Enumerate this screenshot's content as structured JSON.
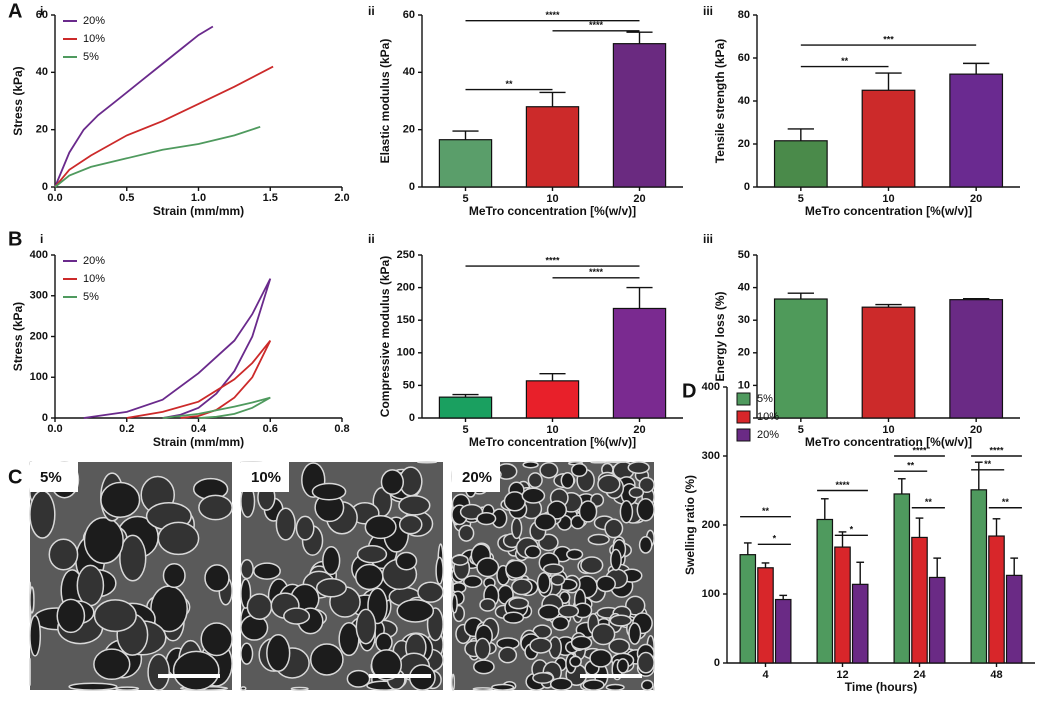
{
  "chart_data": [
    {
      "type": "line",
      "panel_letter": "A",
      "panel_label": "i",
      "xlabel": "Strain (mm/mm)",
      "ylabel": "Stress (kPa)",
      "xlim": [
        0,
        2
      ],
      "xticks": [
        {
          "value": 0,
          "label": "0.0"
        },
        0.5,
        {
          "value": 1,
          "label": "1.0"
        },
        1.5,
        {
          "value": 2,
          "label": "2.0"
        }
      ],
      "ylim": [
        0,
        60
      ],
      "yticks": [
        0,
        20,
        40,
        60
      ],
      "legend": "upper left",
      "series": [
        {
          "name": "20%",
          "color": "#6a2a8c",
          "x": [
            0,
            0.1,
            0.2,
            0.3,
            0.4,
            0.5,
            0.6,
            0.7,
            0.8,
            0.9,
            1.0,
            1.1
          ],
          "values": [
            0,
            12,
            20,
            25,
            29,
            33,
            37,
            41,
            45,
            49,
            53,
            56
          ]
        },
        {
          "name": "10%",
          "color": "#cc2a2a",
          "x": [
            0,
            0.1,
            0.25,
            0.5,
            0.75,
            1.0,
            1.25,
            1.52
          ],
          "values": [
            0,
            6,
            11,
            18,
            23,
            29,
            35,
            42
          ]
        },
        {
          "name": "5%",
          "color": "#4f9a5e",
          "x": [
            0,
            0.1,
            0.25,
            0.5,
            0.75,
            1.0,
            1.25,
            1.43
          ],
          "values": [
            0,
            4,
            7,
            10,
            13,
            15,
            18,
            21
          ]
        }
      ]
    },
    {
      "type": "bar",
      "panel_label": "ii",
      "xlabel": "MeTro concentration [%(w/v)]",
      "ylabel": "Elastic modulus (kPa)",
      "categories": [
        "5",
        "10",
        "20"
      ],
      "values": [
        16.5,
        28,
        50
      ],
      "errors": [
        3,
        5,
        4
      ],
      "colors": [
        "#5a9e6a",
        "#cc2a2a",
        "#6a2a80"
      ],
      "ylim": [
        0,
        60
      ],
      "yticks": [
        0,
        20,
        40,
        60
      ],
      "annotations": [
        {
          "text": "**",
          "from": 0,
          "to": 1,
          "y": 34
        },
        {
          "text": "****",
          "from": 0,
          "to": 2,
          "y": 58
        },
        {
          "text": "****",
          "from": 1,
          "to": 2,
          "y": 54.5
        }
      ]
    },
    {
      "type": "bar",
      "panel_label": "iii",
      "xlabel": "MeTro concentration [%(w/v)]",
      "ylabel": "Tensile strength (kPa)",
      "categories": [
        "5",
        "10",
        "20"
      ],
      "values": [
        21.5,
        45,
        52.5
      ],
      "errors": [
        5.5,
        8,
        5
      ],
      "colors": [
        "#4a8a4a",
        "#cc2a2a",
        "#6a2a90"
      ],
      "ylim": [
        0,
        80
      ],
      "yticks": [
        0,
        20,
        40,
        60,
        80
      ],
      "annotations": [
        {
          "text": "**",
          "from": 0,
          "to": 1,
          "y": 56
        },
        {
          "text": "***",
          "from": 0,
          "to": 2,
          "y": 66
        }
      ]
    },
    {
      "type": "line",
      "panel_letter": "B",
      "panel_label": "i",
      "xlabel": "Strain (mm/mm)",
      "ylabel": "Stress (kPa)",
      "xlim": [
        0,
        0.8
      ],
      "xticks": [
        {
          "value": 0,
          "label": "0.0"
        },
        0.2,
        0.4,
        0.6,
        0.8
      ],
      "ylim": [
        0,
        400
      ],
      "yticks": [
        0,
        100,
        200,
        300,
        400
      ],
      "legend": "upper left",
      "series": [
        {
          "name": "20%",
          "color": "#6a2a8c",
          "x": [
            0.08,
            0.2,
            0.3,
            0.4,
            0.5,
            0.55,
            0.6,
            0.55,
            0.5,
            0.45,
            0.4,
            0.35,
            0.3
          ],
          "values": [
            0,
            15,
            45,
            110,
            190,
            255,
            342,
            200,
            115,
            60,
            25,
            8,
            0
          ]
        },
        {
          "name": "10%",
          "color": "#cc2a2a",
          "x": [
            0.2,
            0.3,
            0.4,
            0.5,
            0.55,
            0.6,
            0.55,
            0.5,
            0.45,
            0.4,
            0.35
          ],
          "values": [
            0,
            15,
            40,
            95,
            135,
            190,
            100,
            50,
            20,
            5,
            0
          ]
        },
        {
          "name": "5%",
          "color": "#4f9a5e",
          "x": [
            0.3,
            0.4,
            0.5,
            0.55,
            0.6,
            0.55,
            0.5,
            0.45,
            0.4
          ],
          "values": [
            0,
            10,
            28,
            38,
            50,
            25,
            10,
            3,
            0
          ]
        }
      ]
    },
    {
      "type": "bar",
      "panel_label": "ii",
      "xlabel": "MeTro concentration [%(w/v)]",
      "ylabel": "Compressive modulus (kPa)",
      "categories": [
        "5",
        "10",
        "20"
      ],
      "values": [
        32,
        57,
        168
      ],
      "errors": [
        4,
        11,
        32
      ],
      "colors": [
        "#1aa060",
        "#e8202a",
        "#7a2a90"
      ],
      "ylim": [
        0,
        250
      ],
      "yticks": [
        0,
        50,
        100,
        150,
        200,
        250
      ],
      "annotations": [
        {
          "text": "****",
          "from": 0,
          "to": 2,
          "y": 233
        },
        {
          "text": "****",
          "from": 1,
          "to": 2,
          "y": 215
        }
      ]
    },
    {
      "type": "bar",
      "panel_label": "iii",
      "xlabel": "MeTro concentration [%(w/v)]",
      "ylabel": "Energy loss (%)",
      "categories": [
        "5",
        "10",
        "20"
      ],
      "values": [
        36.5,
        34,
        36.3
      ],
      "errors": [
        1.8,
        0.8,
        0.3
      ],
      "colors": [
        "#4f9a5a",
        "#cc2a2a",
        "#6a2a85"
      ],
      "ylim": [
        0,
        50
      ],
      "yticks": [
        0,
        10,
        20,
        30,
        40,
        50
      ],
      "annotations": []
    },
    {
      "type": "bar",
      "panel_letter": "D",
      "xlabel": "Time (hours)",
      "ylabel": "Swelling ratio (%)",
      "categories": [
        "4",
        "12",
        "24",
        "48"
      ],
      "ylim": [
        0,
        400
      ],
      "yticks": [
        0,
        100,
        200,
        300,
        400
      ],
      "legend": "upper left",
      "series": [
        {
          "name": "5%",
          "color": "#4f9a5e",
          "values": [
            157,
            208,
            245,
            251
          ],
          "errors": [
            17,
            30,
            22,
            40
          ]
        },
        {
          "name": "10%",
          "color": "#d8262a",
          "values": [
            138,
            168,
            182,
            184
          ],
          "errors": [
            7,
            22,
            28,
            25
          ]
        },
        {
          "name": "20%",
          "color": "#6a2a85",
          "values": [
            92,
            114,
            124,
            127
          ],
          "errors": [
            6,
            32,
            28,
            25
          ]
        }
      ],
      "annotations": [
        {
          "text": "**",
          "group": 0,
          "from": 0,
          "to": 2,
          "y": 212
        },
        {
          "text": "*",
          "group": 0,
          "from": 1,
          "to": 2,
          "y": 172
        },
        {
          "text": "****",
          "group": 1,
          "from": 0,
          "to": 2,
          "y": 250
        },
        {
          "text": "*",
          "group": 1,
          "from": 1,
          "to": 2,
          "y": 185
        },
        {
          "text": "****",
          "group": 2,
          "from": 0,
          "to": 2,
          "y": 300
        },
        {
          "text": "**",
          "group": 2,
          "from": 0,
          "to": 1,
          "y": 278
        },
        {
          "text": "**",
          "group": 2,
          "from": 1,
          "to": 2,
          "y": 225
        },
        {
          "text": "****",
          "group": 3,
          "from": 0,
          "to": 2,
          "y": 300
        },
        {
          "text": "**",
          "group": 3,
          "from": 0,
          "to": 1,
          "y": 280
        },
        {
          "text": "**",
          "group": 3,
          "from": 1,
          "to": 2,
          "y": 225
        }
      ]
    }
  ],
  "micrographs": {
    "panel_letter": "C",
    "images": [
      {
        "label": "5%"
      },
      {
        "label": "10%"
      },
      {
        "label": "20%"
      }
    ]
  }
}
